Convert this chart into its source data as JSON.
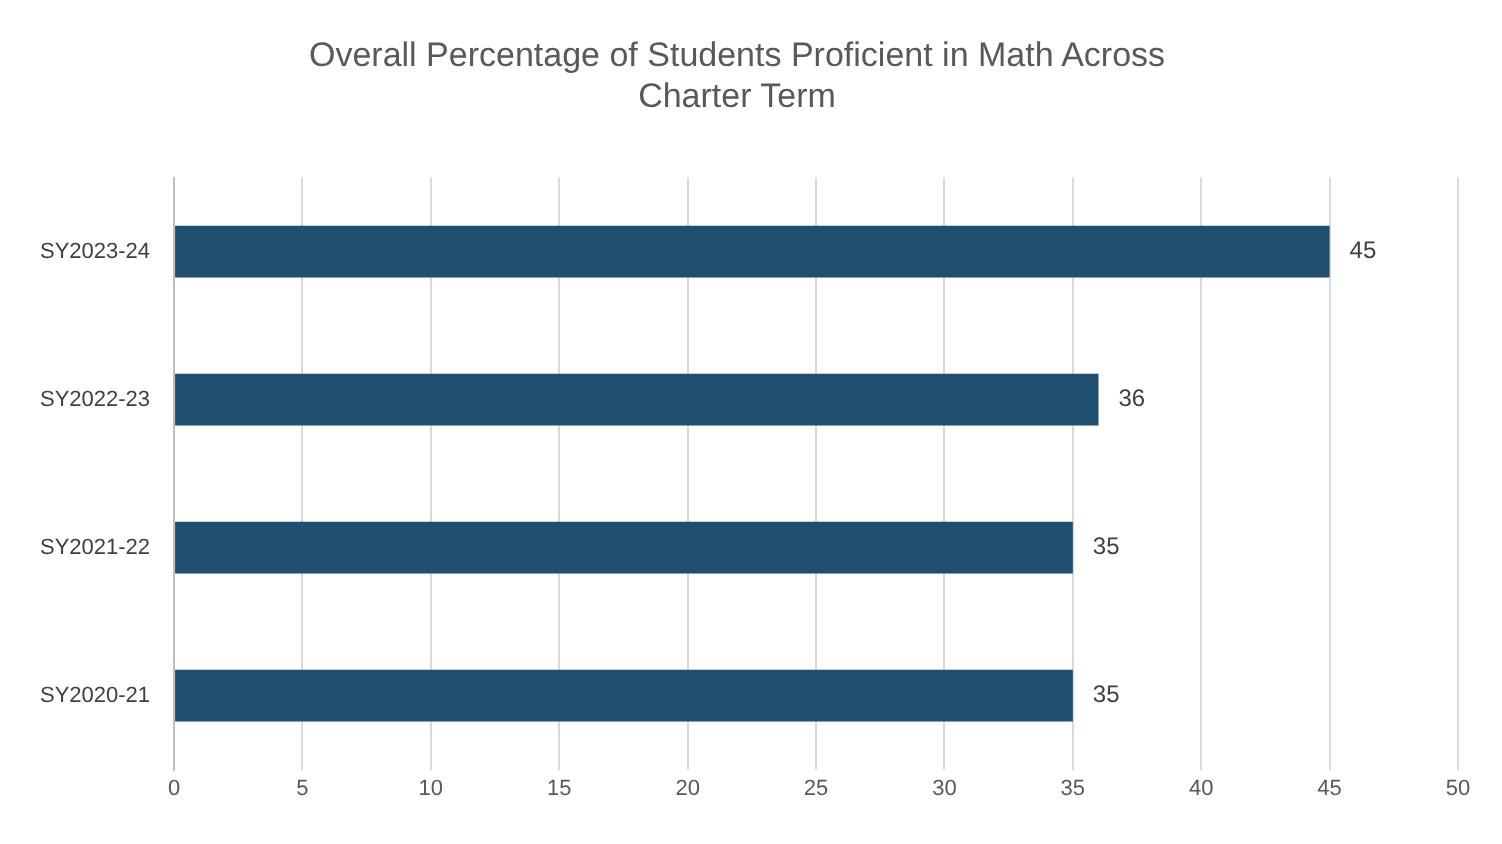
{
  "chart_data": {
    "type": "bar",
    "orientation": "horizontal",
    "title": "Overall Percentage of Students Proficient in Math Across Charter Term",
    "categories": [
      "SY2023-24",
      "SY2022-23",
      "SY2021-22",
      "SY2020-21"
    ],
    "values": [
      45,
      36,
      35,
      35
    ],
    "color": "#1f4e6e",
    "xlim": [
      0,
      50
    ],
    "xticks": [
      0,
      5,
      10,
      15,
      20,
      25,
      30,
      35,
      40,
      45,
      50
    ],
    "grid": "x",
    "data_labels": true,
    "legend": false
  }
}
